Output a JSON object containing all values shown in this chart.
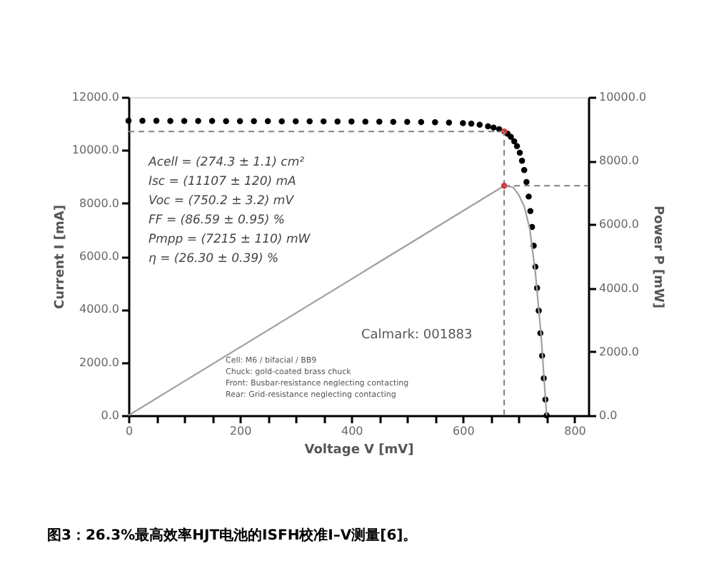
{
  "chart_data": {
    "type": "scatter",
    "xlabel": "Voltage V [mV]",
    "ylabel": "Current I [mA]",
    "y2label": "Power P [mW]",
    "xlim": [
      0,
      825
    ],
    "ylim": [
      0,
      12000
    ],
    "y2lim": [
      0,
      10000
    ],
    "xticks": [
      0,
      {
        "value": 50,
        "label": null
      },
      {
        "value": 100,
        "label": null
      },
      {
        "value": 150,
        "label": null
      },
      200,
      {
        "value": 250,
        "label": null
      },
      {
        "value": 300,
        "label": null
      },
      {
        "value": 350,
        "label": null
      },
      400,
      {
        "value": 450,
        "label": null
      },
      {
        "value": 500,
        "label": null
      },
      {
        "value": 550,
        "label": null
      },
      600,
      {
        "value": 650,
        "label": null
      },
      {
        "value": 700,
        "label": null
      },
      {
        "value": 750,
        "label": null
      },
      800
    ],
    "yticks": [
      {
        "value": 0,
        "label": "0.0"
      },
      {
        "value": 2000,
        "label": "2000.0"
      },
      {
        "value": 4000,
        "label": "4000.0"
      },
      {
        "value": 6000,
        "label": "6000.0"
      },
      {
        "value": 8000,
        "label": "8000.0"
      },
      {
        "value": 10000,
        "label": "10000.0"
      },
      {
        "value": 12000,
        "label": "12000.0"
      }
    ],
    "y2ticks": [
      {
        "value": 0,
        "label": "0.0"
      },
      {
        "value": 2000,
        "label": "2000.0"
      },
      {
        "value": 4000,
        "label": "4000.0"
      },
      {
        "value": 6000,
        "label": "6000.0"
      },
      {
        "value": 8000,
        "label": "8000.0"
      },
      {
        "value": 10000,
        "label": "10000.0"
      }
    ],
    "series": [
      {
        "color": "#000000",
        "marker": "circle",
        "x": [
          0,
          25,
          50,
          75,
          100,
          125,
          150,
          175,
          200,
          225,
          250,
          275,
          300,
          325,
          350,
          375,
          400,
          425,
          450,
          475,
          500,
          525,
          550,
          575,
          600,
          615,
          630,
          645,
          655,
          665,
          674,
          680,
          686,
          692,
          697,
          702,
          706,
          710,
          714,
          718,
          721,
          724,
          727,
          730,
          733,
          736,
          739,
          742,
          745,
          748,
          750.2
        ],
        "values": [
          11107,
          11105,
          11103,
          11101,
          11100,
          11098,
          11096,
          11095,
          11093,
          11091,
          11090,
          11088,
          11086,
          11084,
          11082,
          11080,
          11078,
          11075,
          11072,
          11068,
          11064,
          11058,
          11050,
          11040,
          11020,
          11000,
          10960,
          10900,
          10850,
          10790,
          null,
          10620,
          10500,
          10330,
          10150,
          9900,
          9600,
          9250,
          8800,
          8250,
          7700,
          7100,
          6400,
          5600,
          4800,
          3950,
          3100,
          2250,
          1400,
          600,
          0
        ]
      },
      {
        "type": "line",
        "color": "#a0a0a0",
        "axis": "y2",
        "line_style": "solid",
        "x": [
          0,
          674,
          690,
          700,
          710,
          720,
          730,
          740,
          750.2
        ],
        "values": [
          0,
          7215,
          7170,
          6930,
          6570,
          5850,
          4480,
          2560,
          0
        ]
      },
      {
        "color": "#e0303a",
        "marker": "circle",
        "x": [
          674
        ],
        "values": [
          10705
        ]
      },
      {
        "color": "#e0303a",
        "marker": "circle",
        "axis": "y2",
        "x": [
          674
        ],
        "values": [
          7215
        ]
      }
    ],
    "ref_lines": [
      {
        "axis": "x",
        "value": 674,
        "label": null,
        "color": "#808080",
        "line_style": "dashed"
      },
      {
        "axis": "y",
        "value": 10705,
        "label": null,
        "color": "#808080",
        "line_style": "dashed"
      },
      {
        "axis": "y2",
        "value": 7215,
        "label": null,
        "color": "#808080",
        "line_style": "dashed"
      }
    ],
    "grid": false,
    "annotations": [
      "Acell = (274.3 ± 1.1) cm²",
      "Isc = (11107 ± 120) mA",
      "Voc = (750.2 ± 3.2) mV",
      "FF = (86.59 ± 0.95) %",
      "Pmpp = (7215 ± 110) mW",
      "η = (26.30 ± 0.39) %",
      "Calmark: 001883",
      "Cell: M6 / bifacial / BB9",
      "Chuck: gold-coated brass chuck",
      "Front: Busbar-resistance neglecting contacting",
      "Rear: Grid-resistance neglecting contacting",
      "图3：26.3%最高效率HJT电池的ISFH校准I–V测量[6]。"
    ]
  }
}
